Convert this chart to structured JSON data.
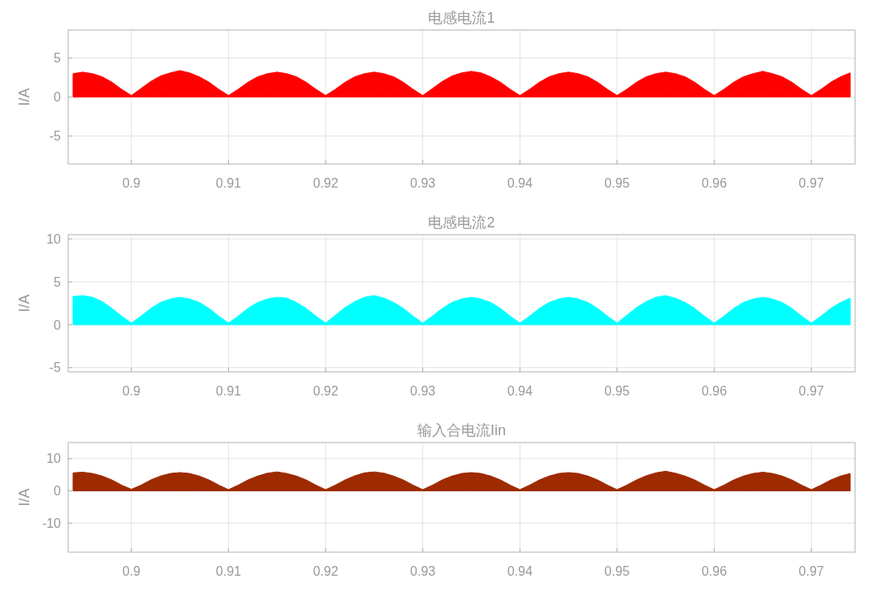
{
  "chart_data": [
    {
      "type": "area",
      "title": "电感电流1",
      "ylabel": "I/A",
      "xlim": [
        0.8935,
        0.9745
      ],
      "ylim": [
        -8.6,
        8.6
      ],
      "xticks": [
        0.9,
        0.91,
        0.92,
        0.93,
        0.94,
        0.95,
        0.96,
        0.97
      ],
      "yticks": [
        -5,
        0,
        5
      ],
      "grid": true,
      "x": [
        0.894,
        0.895,
        0.896,
        0.897,
        0.898,
        0.899,
        0.9,
        0.901,
        0.902,
        0.903,
        0.904,
        0.905,
        0.906,
        0.907,
        0.908,
        0.909,
        0.91,
        0.911,
        0.912,
        0.913,
        0.914,
        0.915,
        0.916,
        0.917,
        0.918,
        0.919,
        0.92,
        0.921,
        0.922,
        0.923,
        0.924,
        0.925,
        0.926,
        0.927,
        0.928,
        0.929,
        0.93,
        0.931,
        0.932,
        0.933,
        0.934,
        0.935,
        0.936,
        0.937,
        0.938,
        0.939,
        0.94,
        0.941,
        0.942,
        0.943,
        0.944,
        0.945,
        0.946,
        0.947,
        0.948,
        0.949,
        0.95,
        0.951,
        0.952,
        0.953,
        0.954,
        0.955,
        0.956,
        0.957,
        0.958,
        0.959,
        0.96,
        0.961,
        0.962,
        0.963,
        0.964,
        0.965,
        0.966,
        0.967,
        0.968,
        0.969,
        0.97,
        0.971,
        0.972,
        0.973,
        0.974
      ],
      "series": [
        {
          "color": "#ff0000",
          "values": [
            3.0,
            3.2,
            3.0,
            2.6,
            1.9,
            1.0,
            0.2,
            1.1,
            2.0,
            2.7,
            3.1,
            3.4,
            3.1,
            2.6,
            1.9,
            1.0,
            0.2,
            1.0,
            1.9,
            2.6,
            3.0,
            3.2,
            3.0,
            2.6,
            1.9,
            1.0,
            0.2,
            1.0,
            1.9,
            2.6,
            3.0,
            3.2,
            3.0,
            2.6,
            1.9,
            1.0,
            0.2,
            1.1,
            2.0,
            2.7,
            3.1,
            3.3,
            3.1,
            2.6,
            1.9,
            1.0,
            0.2,
            1.0,
            1.9,
            2.6,
            3.0,
            3.2,
            3.0,
            2.6,
            1.9,
            1.0,
            0.2,
            1.0,
            1.9,
            2.6,
            3.0,
            3.2,
            3.0,
            2.6,
            1.9,
            1.0,
            0.2,
            1.0,
            1.9,
            2.6,
            3.0,
            3.3,
            3.0,
            2.6,
            1.9,
            1.0,
            0.2,
            1.0,
            1.9,
            2.6,
            3.1
          ]
        }
      ]
    },
    {
      "type": "area",
      "title": "电感电流2",
      "ylabel": "I/A",
      "xlim": [
        0.8935,
        0.9745
      ],
      "ylim": [
        -5.5,
        10.5
      ],
      "xticks": [
        0.9,
        0.91,
        0.92,
        0.93,
        0.94,
        0.95,
        0.96,
        0.97
      ],
      "yticks": [
        -5,
        0,
        5,
        10
      ],
      "grid": true,
      "x": [
        0.894,
        0.895,
        0.896,
        0.897,
        0.898,
        0.899,
        0.9,
        0.901,
        0.902,
        0.903,
        0.904,
        0.905,
        0.906,
        0.907,
        0.908,
        0.909,
        0.91,
        0.911,
        0.912,
        0.913,
        0.914,
        0.915,
        0.916,
        0.917,
        0.918,
        0.919,
        0.92,
        0.921,
        0.922,
        0.923,
        0.924,
        0.925,
        0.926,
        0.927,
        0.928,
        0.929,
        0.93,
        0.931,
        0.932,
        0.933,
        0.934,
        0.935,
        0.936,
        0.937,
        0.938,
        0.939,
        0.94,
        0.941,
        0.942,
        0.943,
        0.944,
        0.945,
        0.946,
        0.947,
        0.948,
        0.949,
        0.95,
        0.951,
        0.952,
        0.953,
        0.954,
        0.955,
        0.956,
        0.957,
        0.958,
        0.959,
        0.96,
        0.961,
        0.962,
        0.963,
        0.964,
        0.965,
        0.966,
        0.967,
        0.968,
        0.969,
        0.97,
        0.971,
        0.972,
        0.973,
        0.974
      ],
      "series": [
        {
          "color": "#00ffff",
          "values": [
            3.3,
            3.4,
            3.2,
            2.7,
            1.9,
            1.0,
            0.2,
            1.0,
            1.9,
            2.6,
            3.0,
            3.2,
            3.0,
            2.6,
            1.9,
            1.0,
            0.2,
            1.0,
            1.9,
            2.6,
            3.0,
            3.2,
            3.1,
            2.6,
            1.9,
            1.0,
            0.2,
            1.1,
            2.0,
            2.7,
            3.2,
            3.4,
            3.1,
            2.6,
            1.9,
            1.0,
            0.2,
            1.0,
            1.9,
            2.6,
            3.0,
            3.2,
            3.0,
            2.6,
            1.9,
            1.0,
            0.2,
            1.0,
            1.9,
            2.6,
            3.0,
            3.2,
            3.0,
            2.6,
            1.9,
            1.0,
            0.2,
            1.1,
            2.0,
            2.7,
            3.2,
            3.4,
            3.1,
            2.6,
            1.9,
            1.0,
            0.2,
            1.0,
            1.9,
            2.6,
            3.0,
            3.2,
            3.0,
            2.6,
            1.9,
            1.0,
            0.2,
            1.0,
            1.9,
            2.6,
            3.1
          ]
        }
      ]
    },
    {
      "type": "area",
      "title": "输入合电流Iin",
      "ylabel": "I/A",
      "xlim": [
        0.8935,
        0.9745
      ],
      "ylim": [
        -19,
        15
      ],
      "xticks": [
        0.9,
        0.91,
        0.92,
        0.93,
        0.94,
        0.95,
        0.96,
        0.97
      ],
      "yticks": [
        -10,
        0,
        10
      ],
      "grid": true,
      "x": [
        0.894,
        0.895,
        0.896,
        0.897,
        0.898,
        0.899,
        0.9,
        0.901,
        0.902,
        0.903,
        0.904,
        0.905,
        0.906,
        0.907,
        0.908,
        0.909,
        0.91,
        0.911,
        0.912,
        0.913,
        0.914,
        0.915,
        0.916,
        0.917,
        0.918,
        0.919,
        0.92,
        0.921,
        0.922,
        0.923,
        0.924,
        0.925,
        0.926,
        0.927,
        0.928,
        0.929,
        0.93,
        0.931,
        0.932,
        0.933,
        0.934,
        0.935,
        0.936,
        0.937,
        0.938,
        0.939,
        0.94,
        0.941,
        0.942,
        0.943,
        0.944,
        0.945,
        0.946,
        0.947,
        0.948,
        0.949,
        0.95,
        0.951,
        0.952,
        0.953,
        0.954,
        0.955,
        0.956,
        0.957,
        0.958,
        0.959,
        0.96,
        0.961,
        0.962,
        0.963,
        0.964,
        0.965,
        0.966,
        0.967,
        0.968,
        0.969,
        0.97,
        0.971,
        0.972,
        0.973,
        0.974
      ],
      "series": [
        {
          "color": "#9e2a00",
          "values": [
            5.6,
            5.8,
            5.4,
            4.6,
            3.4,
            1.8,
            0.5,
            1.8,
            3.4,
            4.6,
            5.4,
            5.7,
            5.4,
            4.6,
            3.4,
            1.8,
            0.4,
            1.8,
            3.4,
            4.6,
            5.5,
            5.9,
            5.4,
            4.6,
            3.4,
            1.8,
            0.4,
            1.8,
            3.4,
            4.7,
            5.6,
            5.9,
            5.5,
            4.6,
            3.4,
            1.8,
            0.4,
            1.8,
            3.4,
            4.6,
            5.4,
            5.7,
            5.4,
            4.6,
            3.4,
            1.8,
            0.4,
            1.8,
            3.4,
            4.6,
            5.4,
            5.7,
            5.4,
            4.6,
            3.4,
            1.8,
            0.4,
            1.8,
            3.4,
            4.7,
            5.6,
            6.1,
            5.5,
            4.6,
            3.4,
            1.8,
            0.4,
            1.8,
            3.4,
            4.6,
            5.4,
            5.8,
            5.4,
            4.6,
            3.4,
            1.8,
            0.4,
            1.8,
            3.4,
            4.6,
            5.4
          ]
        }
      ]
    }
  ]
}
